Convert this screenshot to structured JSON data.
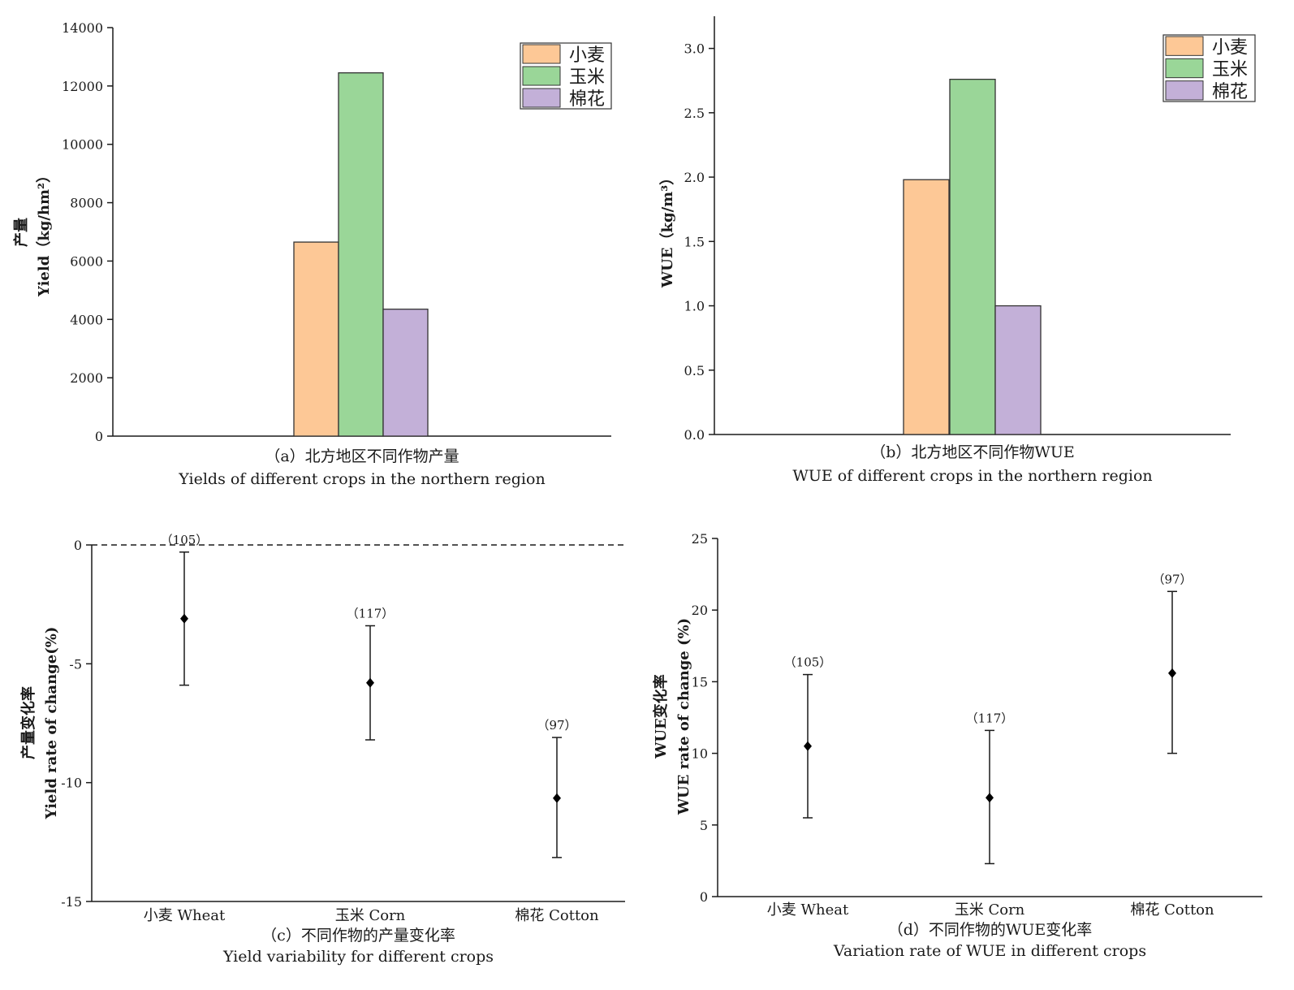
{
  "colors": {
    "wheat": "#fdc896",
    "corn": "#9ad698",
    "cotton": "#c3b0d8",
    "marker": "#000000"
  },
  "chart_data": [
    {
      "type": "bar",
      "categories": [
        "小麦",
        "玉米",
        "棉花"
      ],
      "values": [
        6650,
        12450,
        4350
      ],
      "ylim": [
        0,
        14000
      ],
      "yticks": [
        "0",
        "2000",
        "4000",
        "6000",
        "8000",
        "10000",
        "12000",
        "14000"
      ],
      "ylabel_cn": "产量",
      "ylabel_en": "Yield（kg/hm²）",
      "legend": [
        "小麦",
        "玉米",
        "棉花"
      ],
      "legend_position": "top-right",
      "caption_cn": "（a）北方地区不同作物产量",
      "caption_en": "Yields of different crops in the northern region"
    },
    {
      "type": "bar",
      "categories": [
        "小麦",
        "玉米",
        "棉花"
      ],
      "values": [
        1.98,
        2.76,
        1.0
      ],
      "ylim": [
        0,
        3.25
      ],
      "yticks": [
        "0.0",
        "0.5",
        "1.0",
        "1.5",
        "2.0",
        "2.5",
        "3.0"
      ],
      "ylabel_en": "WUE（kg/m³）",
      "legend": [
        "小麦",
        "玉米",
        "棉花"
      ],
      "legend_position": "top-right",
      "caption_cn": "（b）北方地区不同作物WUE",
      "caption_en": "WUE of different crops in the northern region"
    },
    {
      "type": "scatter",
      "categories": [
        "小麦  Wheat",
        "玉米  Corn",
        "棉花  Cotton"
      ],
      "values": [
        -3.1,
        -5.8,
        -10.65
      ],
      "lower": [
        -5.9,
        -8.2,
        -13.15
      ],
      "upper": [
        -0.3,
        -3.4,
        -8.1
      ],
      "n_labels": [
        "（105）",
        "（117）",
        "（97）"
      ],
      "ylim": [
        -15,
        0
      ],
      "yticks": [
        "0",
        "-5",
        "-10",
        "-15"
      ],
      "reference_line": 0,
      "ylabel_cn": "产量变化率",
      "ylabel_en": "Yield rate of change(%)",
      "caption_cn": "（c）不同作物的产量变化率",
      "caption_en": "Yield variability for different crops"
    },
    {
      "type": "scatter",
      "categories": [
        "小麦  Wheat",
        "玉米  Corn",
        "棉花  Cotton"
      ],
      "values": [
        10.5,
        6.9,
        15.6
      ],
      "lower": [
        5.5,
        2.3,
        10.0
      ],
      "upper": [
        15.5,
        11.6,
        21.3
      ],
      "n_labels": [
        "（105）",
        "（117）",
        "（97）"
      ],
      "ylim": [
        0,
        25
      ],
      "yticks": [
        "0",
        "5",
        "10",
        "15",
        "20",
        "25"
      ],
      "ylabel_cn": "WUE变化率",
      "ylabel_en": "WUE rate of change (%)",
      "caption_cn": "（d）不同作物的WUE变化率",
      "caption_en": "Variation rate of WUE in different crops"
    }
  ]
}
